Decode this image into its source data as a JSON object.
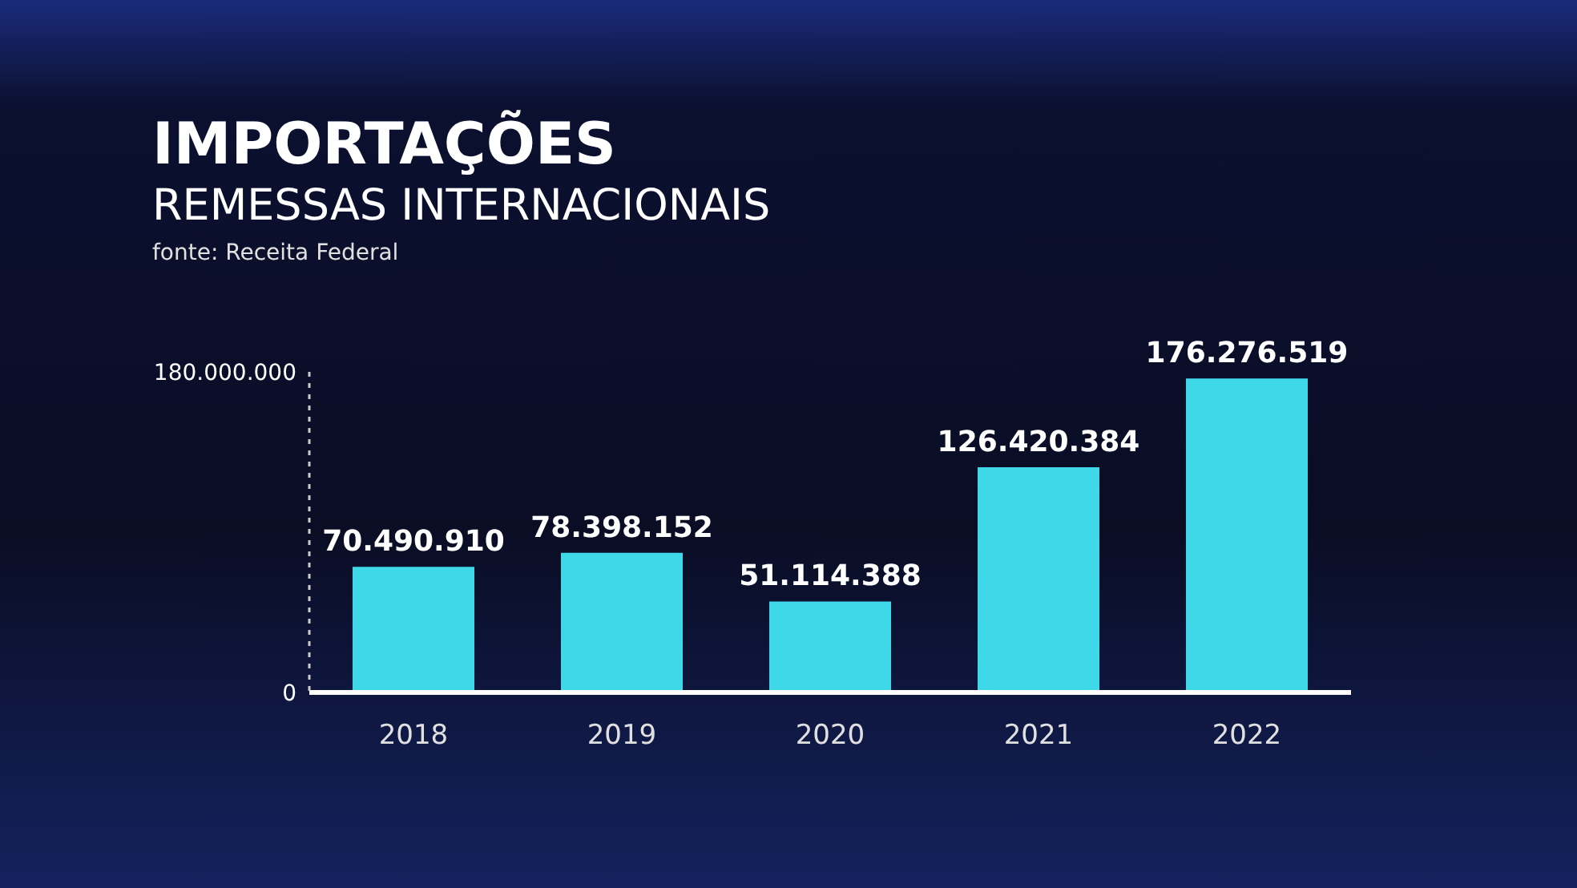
{
  "chart_data": {
    "type": "bar",
    "title": "IMPORTAÇÕES",
    "subtitle": "REMESSAS INTERNACIONAIS",
    "annotations": [
      "fonte: Receita Federal"
    ],
    "categories": [
      "2018",
      "2019",
      "2020",
      "2021",
      "2022"
    ],
    "values": [
      70490910,
      78398152,
      51114388,
      126420384,
      176276519
    ],
    "value_labels": [
      "70.490.910",
      "78.398.152",
      "51.114.388",
      "126.420.384",
      "176.276.519"
    ],
    "color": "#3fd8e8",
    "ylim": [
      0,
      180000000
    ],
    "yticks": [
      0,
      {
        "value": 180000000,
        "label": "180.000.000"
      }
    ],
    "grid": false
  }
}
